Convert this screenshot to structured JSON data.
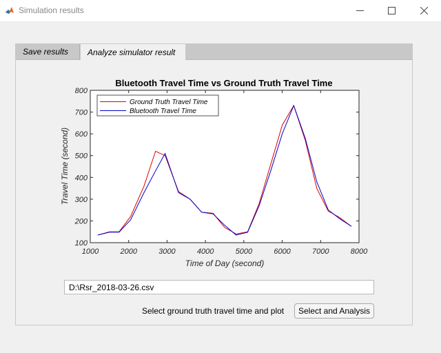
{
  "window": {
    "title": "Simulation results",
    "minimize_glyph": "—",
    "maximize_glyph": "☐",
    "close_glyph": "✕"
  },
  "tabs": [
    {
      "label": "Save results",
      "selected": false
    },
    {
      "label": "Analyze simulator result",
      "selected": true
    }
  ],
  "colors": {
    "ground_truth": "#dd0000",
    "bluetooth": "#0000cc"
  },
  "chart_data": {
    "type": "line",
    "title": "Bluetooth Travel Time vs Ground Truth Travel Time",
    "xlabel": "Time of Day (second)",
    "ylabel": "Travel Time (second)",
    "xlim": [
      1000,
      8000
    ],
    "ylim": [
      100,
      800
    ],
    "xticks": [
      1000,
      2000,
      3000,
      4000,
      5000,
      6000,
      7000,
      8000
    ],
    "yticks": [
      100,
      200,
      300,
      400,
      500,
      600,
      700,
      800
    ],
    "legend_position": "top-left",
    "grid": false,
    "series": [
      {
        "name": "Ground Truth Travel Time",
        "color": "#dd0000",
        "x": [
          1200,
          1500,
          1750,
          2050,
          2400,
          2700,
          2950,
          3300,
          3600,
          3900,
          4200,
          4500,
          4800,
          5100,
          5400,
          5700,
          6000,
          6300,
          6600,
          6900,
          7200,
          7500,
          7800
        ],
        "y": [
          135,
          150,
          150,
          220,
          360,
          520,
          500,
          335,
          300,
          240,
          235,
          170,
          140,
          150,
          280,
          460,
          640,
          730,
          570,
          350,
          245,
          215,
          175
        ]
      },
      {
        "name": "Bluetooth Travel Time",
        "color": "#0000cc",
        "x": [
          1200,
          1500,
          1750,
          2050,
          2400,
          2700,
          2950,
          3300,
          3600,
          3900,
          4200,
          4500,
          4800,
          5100,
          5400,
          5700,
          6000,
          6300,
          6600,
          6900,
          7200,
          7500,
          7800
        ],
        "y": [
          135,
          148,
          148,
          205,
          330,
          430,
          510,
          330,
          300,
          240,
          232,
          180,
          135,
          148,
          270,
          430,
          600,
          730,
          580,
          380,
          250,
          210,
          175
        ]
      }
    ]
  },
  "file_path": "D:\\Rsr_2018-03-26.csv",
  "prompt_label": "Select ground truth travel time and plot",
  "select_button_label": "Select and Analysis"
}
